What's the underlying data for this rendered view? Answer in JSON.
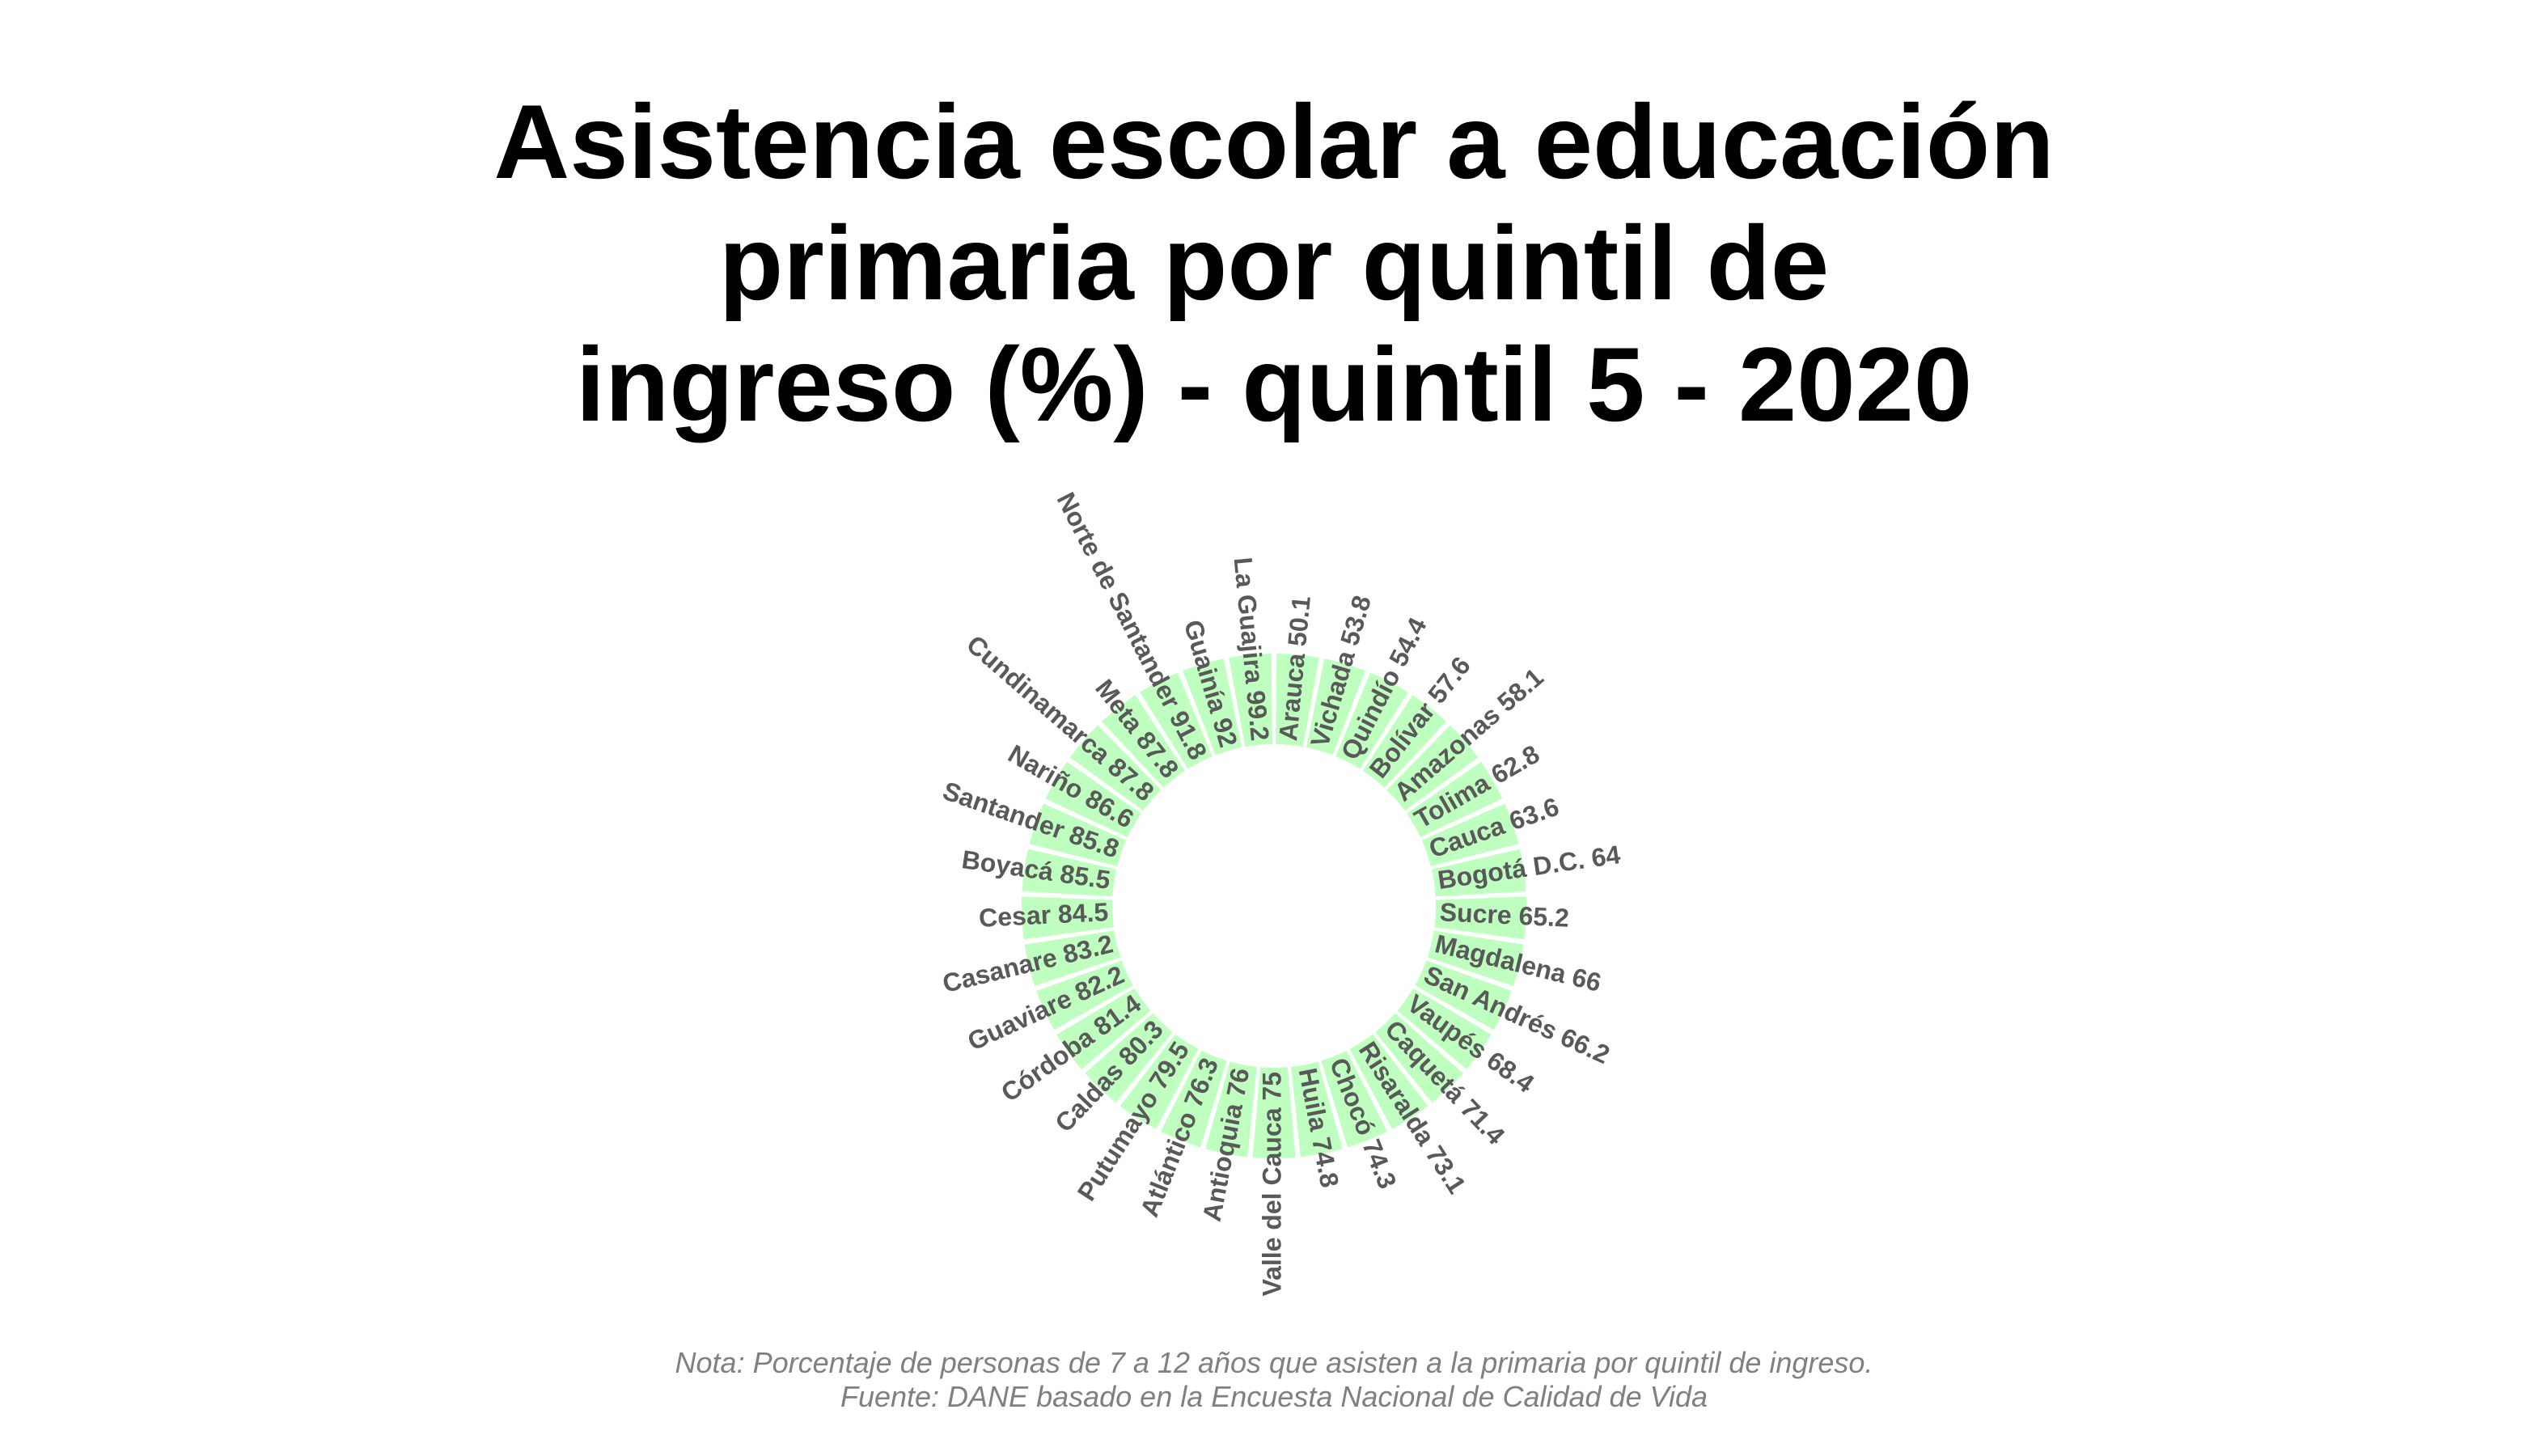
{
  "title_lines": [
    "Asistencia escolar a educación",
    "primaria por quintil de",
    "ingreso (%) - quintil 5 - 2020"
  ],
  "note": "Nota: Porcentaje de personas de 7 a 12 años que asisten a la primaria por quintil de ingreso.",
  "source": "Fuente: DANE basado en la Encuesta Nacional de Calidad de Vida",
  "colors": {
    "bar": "#bfffc0",
    "label": "#595959",
    "title": "#000000",
    "note": "#808080"
  },
  "chart_data": {
    "type": "bar",
    "layout": "circular",
    "title": "Asistencia escolar a educación primaria por quintil de ingreso (%) - quintil 5 - 2020",
    "categories": [
      "Arauca",
      "Vichada",
      "Quindío",
      "Bolívar",
      "Amazonas",
      "Tolima",
      "Cauca",
      "Bogotá D.C.",
      "Sucre",
      "Magdalena",
      "San Andrés",
      "Vaupés",
      "Caquetá",
      "Risaralda",
      "Chocó",
      "Huila",
      "Valle del Cauca",
      "Antioquia",
      "Atlántico",
      "Putumayo",
      "Caldas",
      "Córdoba",
      "Guaviare",
      "Casanare",
      "Cesar",
      "Boyacá",
      "Santander",
      "Nariño",
      "Cundinamarca",
      "Meta",
      "Norte de Santander",
      "Guainía",
      "La Guajira"
    ],
    "values": [
      50.1,
      53.8,
      54.4,
      57.6,
      58.1,
      62.8,
      63.6,
      64,
      65.2,
      66,
      66.2,
      68.4,
      71.4,
      73.1,
      74.3,
      74.8,
      75,
      76,
      76.3,
      79.5,
      80.3,
      81.4,
      82.2,
      83.2,
      84.5,
      85.5,
      85.8,
      86.6,
      87.8,
      87.8,
      91.8,
      92,
      99.2
    ],
    "labels": [
      "Arauca 50.1",
      "Vichada 53.8",
      "Quindío 54.4",
      "Bolívar 57.6",
      "Amazonas 58.1",
      "Tolima 62.8",
      "Cauca 63.6",
      "Bogotá D.C. 64",
      "Sucre 65.2",
      "Magdalena 66",
      "San Andrés 66.2",
      "Vaupés 68.4",
      "Caquetá 71.4",
      "Risaralda 73.1",
      "Chocó 74.3",
      "Huila 74.8",
      "Valle del Cauca 75",
      "Antioquia 76",
      "Atlántico 76.3",
      "Putumayo 79.5",
      "Caldas 80.3",
      "Córdoba 81.4",
      "Guaviare 82.2",
      "Casanare 83.2",
      "Cesar 84.5",
      "Boyacá 85.5",
      "Santander 85.8",
      "Nariño 86.6",
      "Cundinamarca 87.8",
      "Meta 87.8",
      "Norte de Santander 91.8",
      "Guainía 92",
      "La Guajira 99.2"
    ],
    "ylim": [
      0,
      100
    ],
    "grid": false,
    "legend": "none"
  }
}
